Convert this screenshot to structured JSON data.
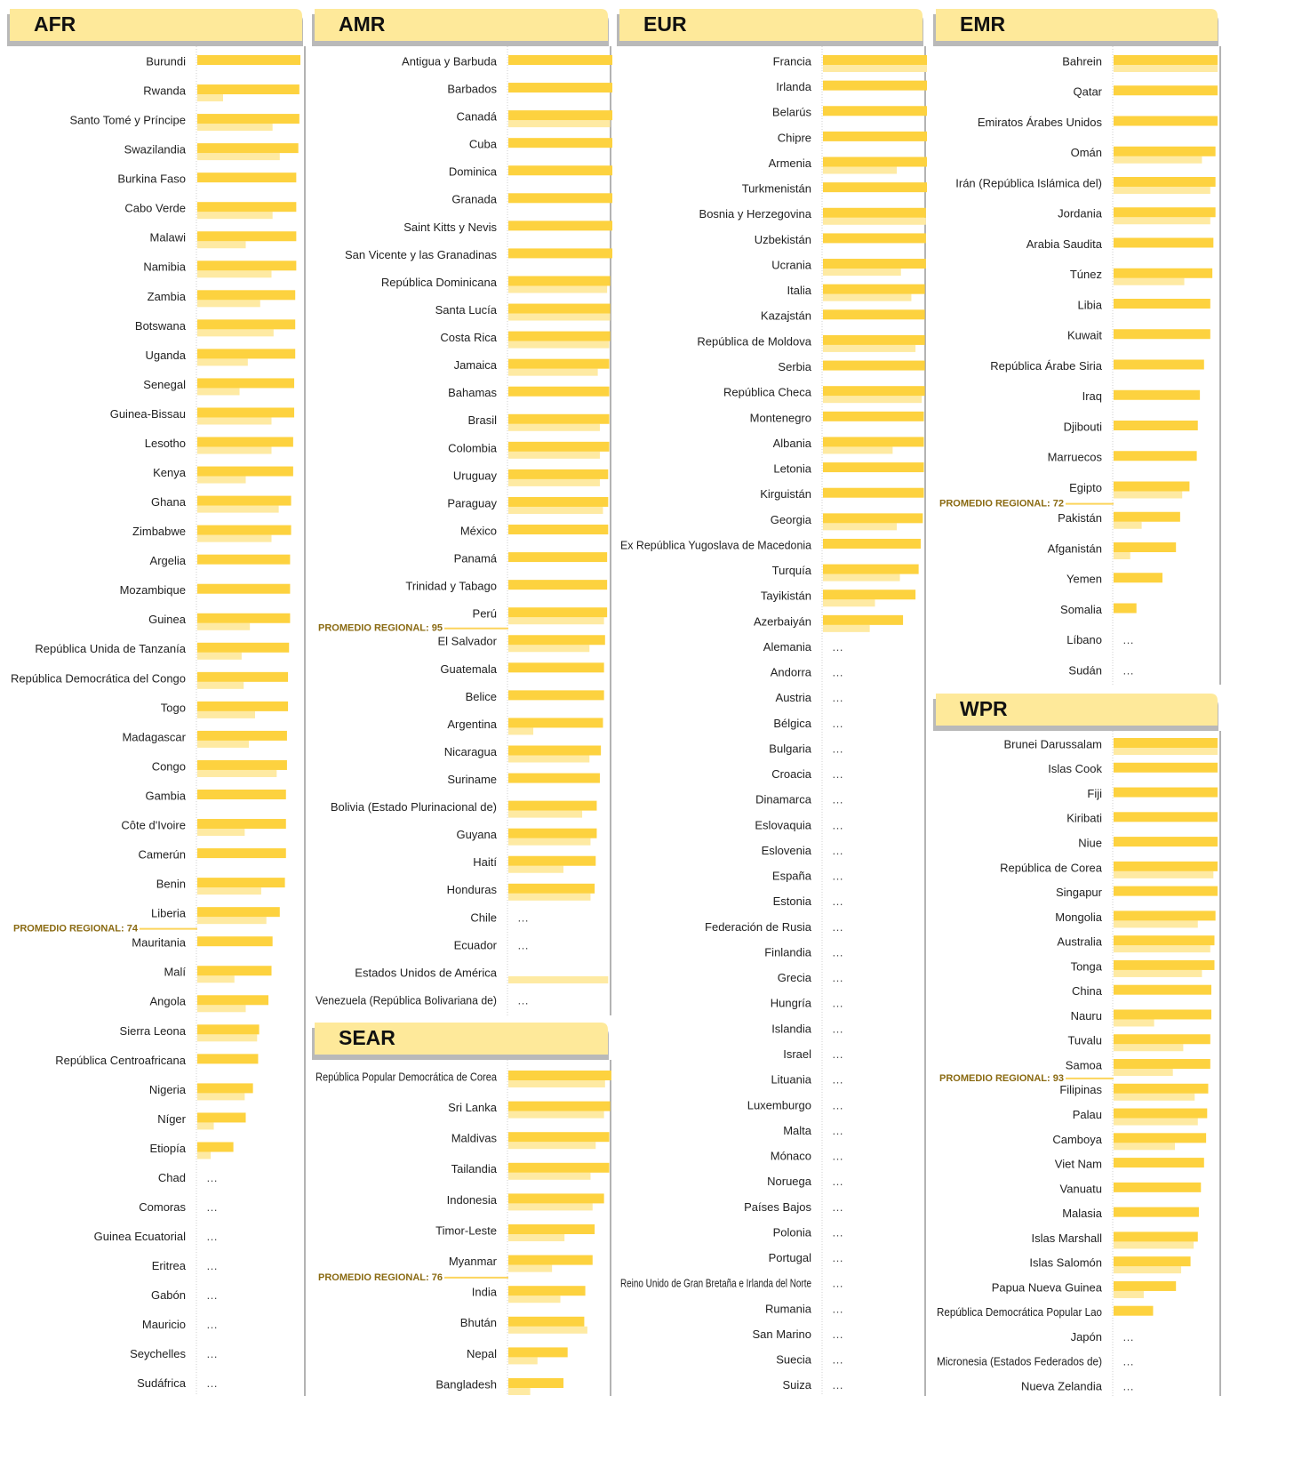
{
  "chart_data": [
    {
      "type": "bar",
      "title": "AFR",
      "xlim": [
        0,
        100
      ],
      "missing_label": "…",
      "average": 74,
      "average_label": "PROMEDIO REGIONAL: 74",
      "categories": [
        "Burundi",
        "Rwanda",
        "Santo Tomé y Príncipe",
        "Swazilandia",
        "Burkina Faso",
        "Cabo Verde",
        "Malawi",
        "Namibia",
        "Zambia",
        "Botswana",
        "Uganda",
        "Senegal",
        "Guinea-Bissau",
        "Lesotho",
        "Kenya",
        "Ghana",
        "Zimbabwe",
        "Argelia",
        "Mozambique",
        "Guinea",
        "República Unida de Tanzanía",
        "República Democrática del Congo",
        "Togo",
        "Madagascar",
        "Congo",
        "Gambia",
        "Côte d'Ivoire",
        "Camerún",
        "Benin",
        "Liberia",
        "Mauritania",
        "Malí",
        "Angola",
        "Sierra Leona",
        "República Centroafricana",
        "Nigeria",
        "Níger",
        "Etiopía",
        "Chad",
        "Comoras",
        "Guinea Ecuatorial",
        "Eritrea",
        "Gabón",
        "Mauricio",
        "Seychelles",
        "Sudáfrica"
      ],
      "series": [
        {
          "color": "#fdd23f",
          "values": [
            100,
            99,
            99,
            98,
            96,
            96,
            96,
            96,
            95,
            95,
            95,
            94,
            94,
            93,
            93,
            91,
            91,
            90,
            90,
            90,
            89,
            88,
            88,
            87,
            87,
            86,
            86,
            86,
            85,
            80,
            73,
            72,
            69,
            60,
            59,
            54,
            47,
            35,
            null,
            null,
            null,
            null,
            null,
            null,
            null,
            null
          ]
        },
        {
          "color": "#feeaa3",
          "values": [
            null,
            25,
            73,
            80,
            null,
            73,
            47,
            72,
            61,
            74,
            49,
            41,
            72,
            72,
            47,
            79,
            72,
            null,
            null,
            51,
            43,
            45,
            56,
            50,
            77,
            null,
            46,
            null,
            62,
            67,
            null,
            36,
            47,
            58,
            null,
            46,
            16,
            13,
            null,
            null,
            null,
            null,
            null,
            null,
            null,
            null
          ]
        }
      ]
    },
    {
      "type": "bar",
      "title": "AMR",
      "xlim": [
        0,
        100
      ],
      "missing_label": "…",
      "average": 95,
      "average_label": "PROMEDIO REGIONAL: 95",
      "categories": [
        "Antigua y Barbuda",
        "Barbados",
        "Canadá",
        "Cuba",
        "Dominica",
        "Granada",
        "Saint Kitts y Nevis",
        "San Vicente y las Granadinas",
        "República Dominicana",
        "Santa Lucía",
        "Costa Rica",
        "Jamaica",
        "Bahamas",
        "Brasil",
        "Colombia",
        "Uruguay",
        "Paraguay",
        "México",
        "Panamá",
        "Trinidad y Tabago",
        "Perú",
        "El Salvador",
        "Guatemala",
        "Belice",
        "Argentina",
        "Nicaragua",
        "Suriname",
        "Bolivia (Estado Plurinacional de)",
        "Guyana",
        "Haití",
        "Honduras",
        "Chile",
        "Ecuador",
        "Estados Unidos de América",
        "Venezuela (República Bolivariana de)"
      ],
      "series": [
        {
          "color": "#fdd23f",
          "values": [
            100,
            100,
            100,
            100,
            100,
            100,
            100,
            100,
            98,
            98,
            98,
            97,
            97,
            97,
            97,
            96,
            96,
            96,
            95,
            95,
            95,
            93,
            92,
            92,
            91,
            89,
            88,
            85,
            85,
            84,
            83,
            null,
            null,
            null,
            null
          ]
        },
        {
          "color": "#feeaa3",
          "values": [
            null,
            null,
            98,
            null,
            null,
            null,
            null,
            null,
            95,
            98,
            97,
            86,
            null,
            88,
            88,
            88,
            91,
            null,
            null,
            null,
            92,
            78,
            null,
            null,
            24,
            78,
            null,
            71,
            79,
            53,
            79,
            null,
            null,
            96,
            null
          ]
        }
      ]
    },
    {
      "type": "bar",
      "title": "SEAR",
      "xlim": [
        0,
        100
      ],
      "missing_label": "…",
      "average": 76,
      "average_label": "PROMEDIO REGIONAL: 76",
      "categories": [
        "República Popular Democrática de Corea",
        "Sri Lanka",
        "Maldivas",
        "Tailandia",
        "Indonesia",
        "Timor-Leste",
        "Myanmar",
        "India",
        "Bhután",
        "Nepal",
        "Bangladesh"
      ],
      "series": [
        {
          "color": "#fdd23f",
          "values": [
            99,
            98,
            97,
            97,
            92,
            83,
            81,
            74,
            73,
            57,
            53
          ]
        },
        {
          "color": "#feeaa3",
          "values": [
            93,
            92,
            84,
            79,
            81,
            54,
            42,
            50,
            76,
            28,
            21
          ]
        }
      ]
    },
    {
      "type": "bar",
      "title": "EUR",
      "xlim": [
        0,
        100
      ],
      "missing_label": "…",
      "categories": [
        "Francia",
        "Irlanda",
        "Belarús",
        "Chipre",
        "Armenia",
        "Turkmenistán",
        "Bosnia y Herzegovina",
        "Uzbekistán",
        "Ucrania",
        "Italia",
        "Kazajstán",
        "República de Moldova",
        "Serbia",
        "República Checa",
        "Montenegro",
        "Albania",
        "Letonia",
        "Kirguistán",
        "Georgia",
        "Ex República Yugoslava de Macedonia",
        "Turquía",
        "Tayikistán",
        "Azerbaiyán",
        "Alemania",
        "Andorra",
        "Austria",
        "Bélgica",
        "Bulgaria",
        "Croacia",
        "Dinamarca",
        "Eslovaquia",
        "Eslovenia",
        "España",
        "Estonia",
        "Federación de Rusia",
        "Finlandia",
        "Grecia",
        "Hungría",
        "Islandia",
        "Israel",
        "Lituania",
        "Luxemburgo",
        "Malta",
        "Mónaco",
        "Noruega",
        "Países Bajos",
        "Polonia",
        "Portugal",
        "Reino Unido de Gran Bretaña e Irlanda del Norte",
        "Rumania",
        "San Marino",
        "Suecia",
        "Suiza"
      ],
      "series": [
        {
          "color": "#fdd23f",
          "values": [
            100,
            100,
            100,
            100,
            100,
            100,
            99,
            99,
            99,
            98,
            98,
            98,
            98,
            98,
            97,
            97,
            97,
            97,
            96,
            94,
            92,
            89,
            77,
            null,
            null,
            null,
            null,
            null,
            null,
            null,
            null,
            null,
            null,
            null,
            null,
            null,
            null,
            null,
            null,
            null,
            null,
            null,
            null,
            null,
            null,
            null,
            null,
            null,
            null,
            null,
            null,
            null,
            null
          ]
        },
        {
          "color": "#feeaa3",
          "values": [
            100,
            null,
            null,
            null,
            71,
            null,
            99,
            null,
            75,
            85,
            null,
            89,
            null,
            95,
            null,
            67,
            null,
            null,
            71,
            null,
            74,
            50,
            45,
            null,
            null,
            null,
            null,
            null,
            null,
            null,
            null,
            null,
            null,
            null,
            null,
            null,
            null,
            null,
            null,
            null,
            null,
            null,
            null,
            null,
            null,
            null,
            null,
            null,
            null,
            null,
            null,
            null,
            null
          ]
        }
      ]
    },
    {
      "type": "bar",
      "title": "EMR",
      "xlim": [
        0,
        100
      ],
      "missing_label": "…",
      "average": 72,
      "average_label": "PROMEDIO REGIONAL: 72",
      "categories": [
        "Bahrein",
        "Qatar",
        "Emiratos Árabes Unidos",
        "Omán",
        "Irán (República Islámica del)",
        "Jordania",
        "Arabia Saudita",
        "Túnez",
        "Libia",
        "Kuwait",
        "República Árabe Siria",
        "Iraq",
        "Djibouti",
        "Marruecos",
        "Egipto",
        "Pakistán",
        "Afganistán",
        "Yemen",
        "Somalia",
        "Líbano",
        "Sudán"
      ],
      "series": [
        {
          "color": "#fdd23f",
          "values": [
            100,
            100,
            100,
            98,
            98,
            98,
            96,
            95,
            93,
            93,
            87,
            83,
            81,
            80,
            73,
            64,
            60,
            47,
            22,
            null,
            null
          ]
        },
        {
          "color": "#feeaa3",
          "values": [
            100,
            null,
            null,
            85,
            93,
            93,
            null,
            68,
            null,
            null,
            null,
            null,
            null,
            null,
            66,
            27,
            16,
            null,
            null,
            null,
            null
          ]
        }
      ]
    },
    {
      "type": "bar",
      "title": "WPR",
      "xlim": [
        0,
        100
      ],
      "missing_label": "…",
      "average": 93,
      "average_label": "PROMEDIO REGIONAL: 93",
      "categories": [
        "Brunei Darussalam",
        "Islas Cook",
        "Fiji",
        "Kiribati",
        "Niue",
        "República de Corea",
        "Singapur",
        "Mongolia",
        "Australia",
        "Tonga",
        "China",
        "Nauru",
        "Tuvalu",
        "Samoa",
        "Filipinas",
        "Palau",
        "Camboya",
        "Viet Nam",
        "Vanuatu",
        "Malasia",
        "Islas Marshall",
        "Islas Salomón",
        "Papua Nueva Guinea",
        "República Democrática Popular Lao",
        "Japón",
        "Micronesia (Estados Federados de)",
        "Nueva Zelandia"
      ],
      "series": [
        {
          "color": "#fdd23f",
          "values": [
            100,
            100,
            100,
            100,
            100,
            100,
            100,
            98,
            97,
            97,
            94,
            94,
            93,
            93,
            91,
            90,
            89,
            87,
            84,
            82,
            81,
            74,
            60,
            38,
            null,
            null,
            null
          ]
        },
        {
          "color": "#feeaa3",
          "values": [
            100,
            null,
            null,
            null,
            null,
            96,
            null,
            81,
            93,
            85,
            null,
            39,
            67,
            57,
            78,
            81,
            59,
            null,
            null,
            null,
            77,
            65,
            29,
            null,
            null,
            null,
            null
          ]
        }
      ]
    }
  ]
}
